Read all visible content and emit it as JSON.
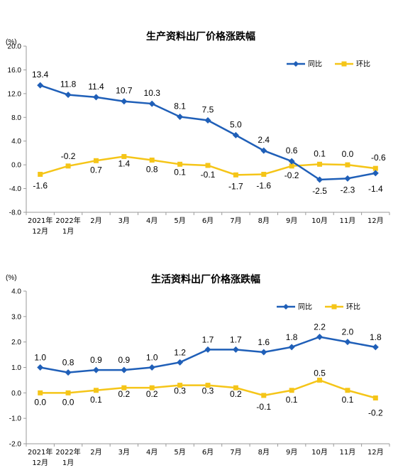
{
  "chart_data": [
    {
      "type": "line",
      "title": "生产资料出厂价格涨跌幅",
      "unit_label": "(%)",
      "categories": [
        [
          "2021年",
          "12月"
        ],
        [
          "2022年",
          "1月"
        ],
        [
          "2月"
        ],
        [
          "3月"
        ],
        [
          "4月"
        ],
        [
          "5月"
        ],
        [
          "6月"
        ],
        [
          "7月"
        ],
        [
          "8月"
        ],
        [
          "9月"
        ],
        [
          "10月"
        ],
        [
          "11月"
        ],
        [
          "12月"
        ]
      ],
      "ylim": [
        -8.0,
        20.0
      ],
      "yticks": [
        "20.0",
        "16.0",
        "12.0",
        "8.0",
        "4.0",
        "0.0",
        "-4.0",
        "-8.0"
      ],
      "legend_position": "top-right",
      "series": [
        {
          "name": "同比",
          "color": "#1F5FB8",
          "marker": "diamond",
          "values": [
            13.4,
            11.8,
            11.4,
            10.7,
            10.3,
            8.1,
            7.5,
            5.0,
            2.4,
            0.6,
            -2.5,
            -2.3,
            -1.4
          ],
          "labels": [
            "13.4",
            "11.8",
            "11.4",
            "10.7",
            "10.3",
            "8.1",
            "7.5",
            "5.0",
            "2.4",
            "0.6",
            "-2.5",
            "-2.3",
            "-1.4"
          ]
        },
        {
          "name": "环比",
          "color": "#F5C518",
          "marker": "square",
          "values": [
            -1.6,
            -0.2,
            0.7,
            1.4,
            0.8,
            0.1,
            -0.1,
            -1.7,
            -1.6,
            -0.2,
            0.1,
            0.0,
            -0.6
          ],
          "labels": [
            "-1.6",
            "-0.2",
            "0.7",
            "1.4",
            "0.8",
            "0.1",
            "-0.1",
            "-1.7",
            "-1.6",
            "-0.2",
            "0.1",
            "0.0",
            "-0.6"
          ]
        }
      ]
    },
    {
      "type": "line",
      "title": "生活资料出厂价格涨跌幅",
      "unit_label": "(%)",
      "categories": [
        [
          "2021年",
          "12月"
        ],
        [
          "2022年",
          "1月"
        ],
        [
          "2月"
        ],
        [
          "3月"
        ],
        [
          "4月"
        ],
        [
          "5月"
        ],
        [
          "6月"
        ],
        [
          "7月"
        ],
        [
          "8月"
        ],
        [
          "9月"
        ],
        [
          "10月"
        ],
        [
          "11月"
        ],
        [
          "12月"
        ]
      ],
      "ylim": [
        -2.0,
        4.0
      ],
      "yticks": [
        "4.0",
        "3.0",
        "2.0",
        "1.0",
        "0.0",
        "-1.0",
        "-2.0"
      ],
      "legend_position": "top-right",
      "series": [
        {
          "name": "同比",
          "color": "#1F5FB8",
          "marker": "diamond",
          "values": [
            1.0,
            0.8,
            0.9,
            0.9,
            1.0,
            1.2,
            1.7,
            1.7,
            1.6,
            1.8,
            2.2,
            2.0,
            1.8
          ],
          "labels": [
            "1.0",
            "0.8",
            "0.9",
            "0.9",
            "1.0",
            "1.2",
            "1.7",
            "1.7",
            "1.6",
            "1.8",
            "2.2",
            "2.0",
            "1.8"
          ]
        },
        {
          "name": "环比",
          "color": "#F5C518",
          "marker": "square",
          "values": [
            0.0,
            0.0,
            0.1,
            0.2,
            0.2,
            0.3,
            0.3,
            0.2,
            -0.1,
            0.1,
            0.5,
            0.1,
            -0.2
          ],
          "labels": [
            "0.0",
            "0.0",
            "0.1",
            "0.2",
            "0.2",
            "0.3",
            "0.3",
            "0.2",
            "-0.1",
            "0.1",
            "0.5",
            "0.1",
            "-0.2"
          ]
        }
      ]
    }
  ]
}
